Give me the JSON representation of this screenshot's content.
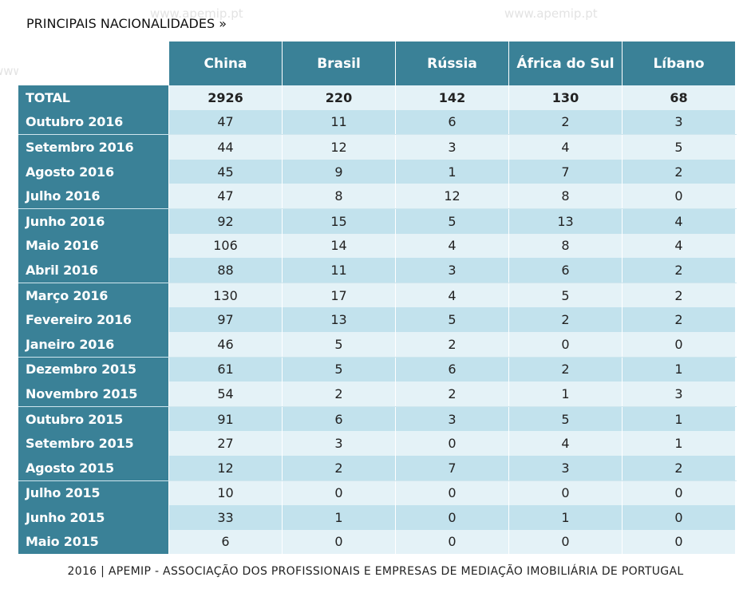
{
  "title": "PRINCIPAIS NACIONALIDADES »",
  "watermark": "www.apemip.pt",
  "footer": "2016  |  APEMIP - ASSOCIAÇÃO DOS PROFISSIONAIS E EMPRESAS DE MEDIAÇÃO IMOBILIÁRIA DE PORTUGAL",
  "colors": {
    "header": "#3a8197",
    "row_light": "#e4f2f7",
    "row_dark": "#c2e2ed"
  },
  "chart_data": {
    "type": "table",
    "title": "PRINCIPAIS NACIONALIDADES »",
    "columns": [
      "China",
      "Brasil",
      "Rússia",
      "África do Sul",
      "Líbano"
    ],
    "rows": [
      {
        "label": "TOTAL",
        "values": [
          2926,
          220,
          142,
          130,
          68
        ]
      },
      {
        "label": "Outubro 2016",
        "values": [
          47,
          11,
          6,
          2,
          3
        ]
      },
      {
        "label": "Setembro 2016",
        "values": [
          44,
          12,
          3,
          4,
          5
        ]
      },
      {
        "label": "Agosto 2016",
        "values": [
          45,
          9,
          1,
          7,
          2
        ]
      },
      {
        "label": "Julho 2016",
        "values": [
          47,
          8,
          12,
          8,
          0
        ]
      },
      {
        "label": "Junho 2016",
        "values": [
          92,
          15,
          5,
          13,
          4
        ]
      },
      {
        "label": "Maio 2016",
        "values": [
          106,
          14,
          4,
          8,
          4
        ]
      },
      {
        "label": "Abril 2016",
        "values": [
          88,
          11,
          3,
          6,
          2
        ]
      },
      {
        "label": "Março 2016",
        "values": [
          130,
          17,
          4,
          5,
          2
        ]
      },
      {
        "label": "Fevereiro 2016",
        "values": [
          97,
          13,
          5,
          2,
          2
        ]
      },
      {
        "label": "Janeiro 2016",
        "values": [
          46,
          5,
          2,
          0,
          0
        ]
      },
      {
        "label": "Dezembro 2015",
        "values": [
          61,
          5,
          6,
          2,
          1
        ]
      },
      {
        "label": "Novembro 2015",
        "values": [
          54,
          2,
          2,
          1,
          3
        ]
      },
      {
        "label": "Outubro 2015",
        "values": [
          91,
          6,
          3,
          5,
          1
        ]
      },
      {
        "label": "Setembro 2015",
        "values": [
          27,
          3,
          0,
          4,
          1
        ]
      },
      {
        "label": "Agosto 2015",
        "values": [
          12,
          2,
          7,
          3,
          2
        ]
      },
      {
        "label": "Julho 2015",
        "values": [
          10,
          0,
          0,
          0,
          0
        ]
      },
      {
        "label": "Junho 2015",
        "values": [
          33,
          1,
          0,
          1,
          0
        ]
      },
      {
        "label": "Maio 2015",
        "values": [
          6,
          0,
          0,
          0,
          0
        ]
      }
    ]
  }
}
